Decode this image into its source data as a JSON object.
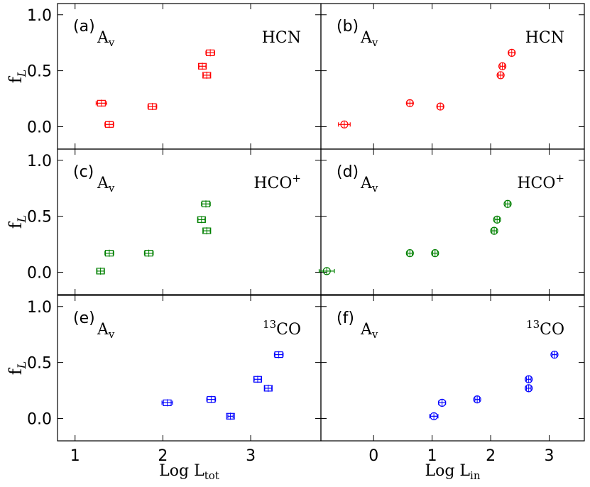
{
  "chart_data": {
    "type": "scatter",
    "layout": "3x2 grid",
    "y_axis": {
      "label_main": "f",
      "label_sub": "L",
      "ylim": [
        -0.2,
        1.1
      ],
      "ticks": [
        "0.0",
        "0.5",
        "1.0"
      ],
      "tick_values": [
        0.0,
        0.5,
        1.0
      ]
    },
    "x_axes": [
      {
        "label_main": "Log L",
        "label_sub": "tot",
        "xlim": [
          0.8,
          3.8
        ],
        "ticks": [
          "1",
          "2",
          "3"
        ],
        "tick_values": [
          1,
          2,
          3
        ]
      },
      {
        "label_main": "Log L",
        "label_sub": "in",
        "xlim": [
          -0.9,
          3.6
        ],
        "ticks": [
          "0",
          "1",
          "2",
          "3"
        ],
        "tick_values": [
          0,
          1,
          2,
          3
        ]
      }
    ],
    "panels": [
      {
        "id": "a",
        "tag": "(a)",
        "row": 0,
        "col": 0,
        "av_main": "A",
        "av_sub": "v",
        "tracer_main": "HCN",
        "tracer_sup": "",
        "tracer_prefix_sup": "",
        "color": "#ff0000",
        "marker": "square",
        "points": [
          {
            "x": 1.3,
            "y": 0.21,
            "xerr": 0.06
          },
          {
            "x": 1.39,
            "y": 0.02,
            "xerr": 0.05
          },
          {
            "x": 1.88,
            "y": 0.18,
            "xerr": 0.05
          },
          {
            "x": 2.45,
            "y": 0.54,
            "xerr": 0.04
          },
          {
            "x": 2.5,
            "y": 0.46,
            "xerr": 0.04
          },
          {
            "x": 2.54,
            "y": 0.66,
            "xerr": 0.05
          }
        ]
      },
      {
        "id": "b",
        "tag": "(b)",
        "row": 0,
        "col": 1,
        "av_main": "A",
        "av_sub": "v",
        "tracer_main": "HCN",
        "tracer_sup": "",
        "tracer_prefix_sup": "",
        "color": "#ff0000",
        "marker": "circle",
        "points": [
          {
            "x": -0.5,
            "y": 0.02,
            "xerr": 0.1
          },
          {
            "x": 0.62,
            "y": 0.21,
            "xerr": 0.05
          },
          {
            "x": 1.14,
            "y": 0.18,
            "xerr": 0.05
          },
          {
            "x": 2.17,
            "y": 0.46,
            "xerr": 0.04
          },
          {
            "x": 2.2,
            "y": 0.54,
            "xerr": 0.04
          },
          {
            "x": 2.36,
            "y": 0.66,
            "xerr": 0.05
          }
        ]
      },
      {
        "id": "c",
        "tag": "(c)",
        "row": 1,
        "col": 0,
        "av_main": "A",
        "av_sub": "v",
        "tracer_main": "HCO",
        "tracer_sup": "+",
        "tracer_prefix_sup": "",
        "color": "#008000",
        "marker": "square",
        "points": [
          {
            "x": 1.29,
            "y": 0.01,
            "xerr": 0.04
          },
          {
            "x": 1.39,
            "y": 0.17,
            "xerr": 0.05
          },
          {
            "x": 1.84,
            "y": 0.17,
            "xerr": 0.05
          },
          {
            "x": 2.44,
            "y": 0.47,
            "xerr": 0.04
          },
          {
            "x": 2.49,
            "y": 0.61,
            "xerr": 0.05
          },
          {
            "x": 2.5,
            "y": 0.37,
            "xerr": 0.04
          }
        ]
      },
      {
        "id": "d",
        "tag": "(d)",
        "row": 1,
        "col": 1,
        "av_main": "A",
        "av_sub": "v",
        "tracer_main": "HCO",
        "tracer_sup": "+",
        "tracer_prefix_sup": "",
        "color": "#008000",
        "marker": "circle",
        "points": [
          {
            "x": -0.8,
            "y": 0.01,
            "xerr": 0.13
          },
          {
            "x": 0.62,
            "y": 0.17,
            "xerr": 0.04
          },
          {
            "x": 1.05,
            "y": 0.17,
            "xerr": 0.04
          },
          {
            "x": 2.06,
            "y": 0.37,
            "xerr": 0.04
          },
          {
            "x": 2.11,
            "y": 0.47,
            "xerr": 0.04
          },
          {
            "x": 2.29,
            "y": 0.61,
            "xerr": 0.04
          }
        ]
      },
      {
        "id": "e",
        "tag": "(e)",
        "row": 2,
        "col": 0,
        "av_main": "A",
        "av_sub": "v",
        "tracer_main": "CO",
        "tracer_sup": "",
        "tracer_prefix_sup": "13",
        "color": "#0000ff",
        "marker": "square",
        "points": [
          {
            "x": 2.05,
            "y": 0.14,
            "xerr": 0.06
          },
          {
            "x": 2.55,
            "y": 0.17,
            "xerr": 0.05
          },
          {
            "x": 2.77,
            "y": 0.02,
            "xerr": 0.03
          },
          {
            "x": 3.08,
            "y": 0.35,
            "xerr": 0.04
          },
          {
            "x": 3.2,
            "y": 0.27,
            "xerr": 0.04
          },
          {
            "x": 3.32,
            "y": 0.57,
            "xerr": 0.05
          }
        ]
      },
      {
        "id": "f",
        "tag": "(f)",
        "row": 2,
        "col": 1,
        "av_main": "A",
        "av_sub": "v",
        "tracer_main": "CO",
        "tracer_sup": "",
        "tracer_prefix_sup": "13",
        "color": "#0000ff",
        "marker": "circle",
        "points": [
          {
            "x": 1.03,
            "y": 0.02,
            "xerr": 0.07
          },
          {
            "x": 1.17,
            "y": 0.14,
            "xerr": 0.06
          },
          {
            "x": 1.77,
            "y": 0.17,
            "xerr": 0.04
          },
          {
            "x": 2.65,
            "y": 0.27,
            "xerr": 0.04
          },
          {
            "x": 2.65,
            "y": 0.35,
            "xerr": 0.04
          },
          {
            "x": 3.09,
            "y": 0.57,
            "xerr": 0.04
          }
        ]
      }
    ]
  }
}
